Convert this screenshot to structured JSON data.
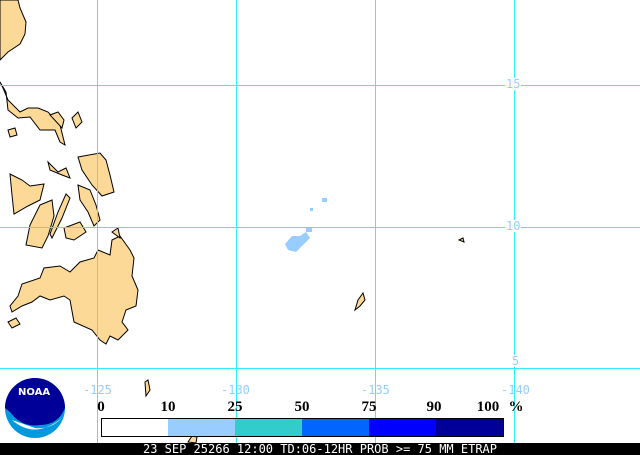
{
  "map": {
    "land_color": "#fdd997",
    "grid_color": "#33eeff",
    "precip_color": "#99ccff",
    "lat_labels": [
      "15",
      "10",
      "5"
    ],
    "lon_labels": [
      "-125",
      "-130",
      "-135",
      "-140"
    ]
  },
  "logo": {
    "text": "NOAA"
  },
  "colorbar": {
    "labels": [
      "0",
      "10",
      "25",
      "50",
      "75",
      "90",
      "100"
    ],
    "unit": "%",
    "colors": [
      "#ffffff",
      "#99ccff",
      "#33cccc",
      "#0066ff",
      "#0000ff",
      "#000099"
    ]
  },
  "status": "23 SEP 25266 12:00 TD:06-12HR PROB >= 75 MM ETRAP"
}
